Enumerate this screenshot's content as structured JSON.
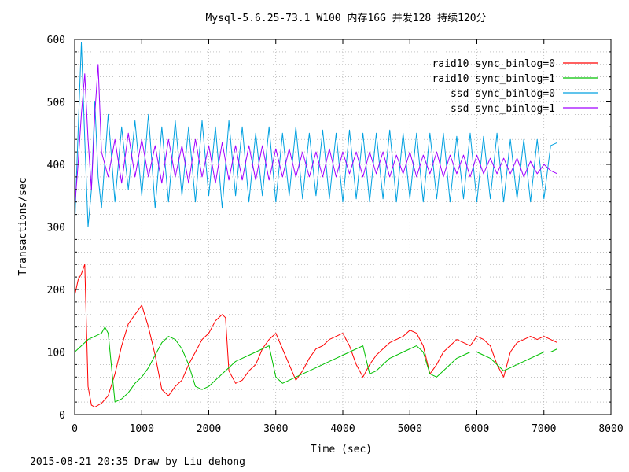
{
  "title": "Mysql-5.6.25-73.1 W100 内存16G 并发128 持续120分",
  "footer": "2015-08-21 20:35 Draw by Liu dehong",
  "chart_data": {
    "type": "line",
    "title": "Mysql-5.6.25-73.1 W100 内存16G 并发128 持续120分",
    "xlabel": "Time (sec)",
    "ylabel": "Transactions/sec",
    "xlim": [
      0,
      8000
    ],
    "ylim": [
      0,
      600
    ],
    "x_ticks": [
      0,
      1000,
      2000,
      3000,
      4000,
      5000,
      6000,
      7000,
      8000
    ],
    "y_ticks": [
      0,
      100,
      200,
      300,
      400,
      500,
      600
    ],
    "grid": true,
    "legend_position": "top-right",
    "series": [
      {
        "name": "raid10 sync_binlog=0",
        "color": "#ff0000",
        "x": [
          0,
          50,
          100,
          150,
          200,
          250,
          300,
          400,
          500,
          600,
          700,
          800,
          900,
          1000,
          1100,
          1200,
          1300,
          1400,
          1500,
          1600,
          1700,
          1800,
          1900,
          2000,
          2100,
          2200,
          2250,
          2300,
          2400,
          2500,
          2600,
          2700,
          2800,
          2900,
          3000,
          3100,
          3200,
          3300,
          3400,
          3500,
          3600,
          3700,
          3800,
          3900,
          4000,
          4100,
          4200,
          4300,
          4400,
          4500,
          4600,
          4700,
          4800,
          4900,
          5000,
          5100,
          5200,
          5300,
          5400,
          5500,
          5600,
          5700,
          5800,
          5900,
          6000,
          6100,
          6200,
          6300,
          6400,
          6500,
          6600,
          6700,
          6800,
          6900,
          7000,
          7100,
          7200
        ],
        "values": [
          190,
          215,
          225,
          240,
          45,
          15,
          12,
          18,
          30,
          65,
          110,
          145,
          160,
          175,
          140,
          95,
          40,
          30,
          45,
          55,
          80,
          100,
          120,
          130,
          150,
          160,
          155,
          70,
          50,
          55,
          70,
          80,
          105,
          120,
          130,
          105,
          80,
          55,
          70,
          90,
          105,
          110,
          120,
          125,
          130,
          110,
          80,
          60,
          80,
          95,
          105,
          115,
          120,
          125,
          135,
          130,
          110,
          65,
          80,
          100,
          110,
          120,
          115,
          110,
          125,
          120,
          110,
          80,
          60,
          100,
          115,
          120,
          125,
          120,
          125,
          120,
          115
        ]
      },
      {
        "name": "raid10 sync_binlog=1",
        "color": "#00c000",
        "x": [
          0,
          100,
          200,
          300,
          400,
          450,
          500,
          600,
          700,
          800,
          900,
          1000,
          1100,
          1200,
          1300,
          1400,
          1500,
          1600,
          1700,
          1800,
          1900,
          2000,
          2100,
          2200,
          2300,
          2400,
          2500,
          2600,
          2700,
          2800,
          2900,
          3000,
          3100,
          3200,
          3300,
          3400,
          3500,
          3600,
          3700,
          3800,
          3900,
          4000,
          4100,
          4200,
          4300,
          4400,
          4500,
          4600,
          4700,
          4800,
          4900,
          5000,
          5100,
          5200,
          5300,
          5400,
          5500,
          5600,
          5700,
          5800,
          5900,
          6000,
          6100,
          6200,
          6300,
          6400,
          6500,
          6600,
          6700,
          6800,
          6900,
          7000,
          7100,
          7200
        ],
        "values": [
          100,
          110,
          120,
          125,
          130,
          140,
          130,
          20,
          25,
          35,
          50,
          60,
          75,
          95,
          115,
          125,
          120,
          105,
          80,
          45,
          40,
          45,
          55,
          65,
          75,
          85,
          90,
          95,
          100,
          105,
          110,
          60,
          50,
          55,
          60,
          65,
          70,
          75,
          80,
          85,
          90,
          95,
          100,
          105,
          110,
          65,
          70,
          80,
          90,
          95,
          100,
          105,
          110,
          100,
          65,
          60,
          70,
          80,
          90,
          95,
          100,
          100,
          95,
          90,
          80,
          70,
          75,
          80,
          85,
          90,
          95,
          100,
          100,
          105
        ]
      },
      {
        "name": "ssd sync_binlog=0",
        "color": "#00a0e0",
        "x": [
          0,
          50,
          100,
          150,
          200,
          250,
          300,
          350,
          400,
          500,
          600,
          700,
          800,
          900,
          1000,
          1100,
          1200,
          1300,
          1400,
          1500,
          1600,
          1700,
          1800,
          1900,
          2000,
          2100,
          2200,
          2300,
          2400,
          2500,
          2600,
          2700,
          2800,
          2900,
          3000,
          3100,
          3200,
          3300,
          3400,
          3500,
          3600,
          3700,
          3800,
          3900,
          4000,
          4100,
          4200,
          4300,
          4400,
          4500,
          4600,
          4700,
          4800,
          4900,
          5000,
          5100,
          5200,
          5300,
          5400,
          5500,
          5600,
          5700,
          5800,
          5900,
          6000,
          6100,
          6200,
          6300,
          6400,
          6500,
          6600,
          6700,
          6800,
          6900,
          7000,
          7100,
          7200
        ],
        "values": [
          300,
          450,
          595,
          440,
          300,
          360,
          500,
          380,
          330,
          480,
          340,
          460,
          360,
          470,
          350,
          480,
          330,
          460,
          340,
          470,
          350,
          460,
          340,
          470,
          350,
          460,
          330,
          470,
          350,
          460,
          340,
          450,
          350,
          460,
          340,
          450,
          350,
          460,
          345,
          450,
          350,
          455,
          345,
          450,
          340,
          455,
          345,
          450,
          340,
          450,
          345,
          455,
          340,
          450,
          345,
          450,
          340,
          450,
          345,
          450,
          340,
          445,
          345,
          450,
          340,
          445,
          345,
          450,
          340,
          440,
          345,
          440,
          340,
          440,
          345,
          430,
          435
        ]
      },
      {
        "name": "ssd sync_binlog=1",
        "color": "#a000ff",
        "x": [
          0,
          50,
          100,
          150,
          200,
          250,
          300,
          350,
          400,
          500,
          600,
          700,
          800,
          900,
          1000,
          1100,
          1200,
          1300,
          1400,
          1500,
          1600,
          1700,
          1800,
          1900,
          2000,
          2100,
          2200,
          2300,
          2400,
          2500,
          2600,
          2700,
          2800,
          2900,
          3000,
          3100,
          3200,
          3300,
          3400,
          3500,
          3600,
          3700,
          3800,
          3900,
          4000,
          4100,
          4200,
          4300,
          4400,
          4500,
          4600,
          4700,
          4800,
          4900,
          5000,
          5100,
          5200,
          5300,
          5400,
          5500,
          5600,
          5700,
          5800,
          5900,
          6000,
          6100,
          6200,
          6300,
          6400,
          6500,
          6600,
          6700,
          6800,
          6900,
          7000,
          7100,
          7200
        ],
        "values": [
          330,
          400,
          480,
          545,
          440,
          360,
          480,
          560,
          420,
          380,
          440,
          370,
          450,
          380,
          440,
          380,
          430,
          370,
          440,
          380,
          430,
          370,
          440,
          380,
          430,
          370,
          435,
          375,
          430,
          375,
          430,
          375,
          430,
          375,
          425,
          380,
          425,
          380,
          420,
          380,
          420,
          380,
          425,
          380,
          420,
          385,
          420,
          380,
          420,
          385,
          420,
          380,
          415,
          385,
          420,
          380,
          415,
          385,
          420,
          380,
          415,
          385,
          415,
          380,
          415,
          385,
          410,
          385,
          410,
          385,
          410,
          380,
          405,
          385,
          400,
          390,
          385
        ]
      }
    ]
  }
}
